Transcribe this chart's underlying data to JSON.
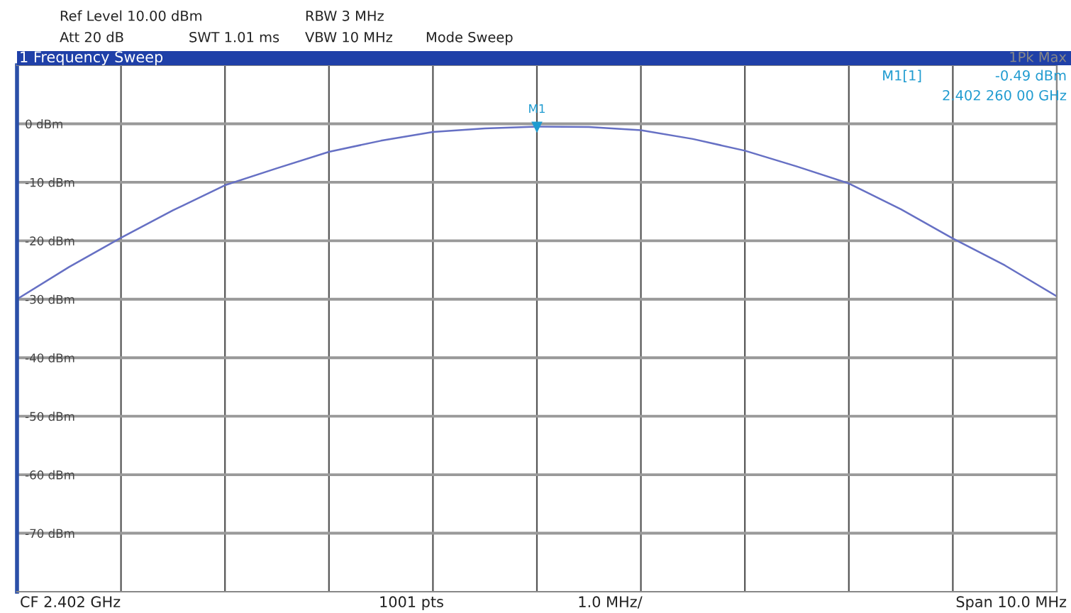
{
  "chart_data": {
    "type": "line",
    "title": "1 Frequency Sweep",
    "annotations": [
      "Ref Level 10.00 dBm",
      "Att 20 dB",
      "SWT 1.01 ms",
      "RBW 3 MHz",
      "VBW 10 MHz",
      "Mode Sweep",
      "1Pk Max",
      "M1[1]",
      "-0.49 dBm",
      "2.402 260 00 GHz",
      "CF 2.402 GHz",
      "1001 pts",
      "1.0 MHz/",
      "Span 10.0 MHz",
      "M1"
    ],
    "categories": [
      null,
      null,
      null,
      null,
      null,
      null,
      null,
      null,
      null,
      null,
      null,
      null,
      null,
      null,
      null,
      null,
      null,
      null,
      null,
      null,
      null
    ],
    "series": [
      {
        "color": "#6670c4",
        "values": [
          -30,
          -24.5,
          -19.5,
          -14.8,
          -10.5,
          -7.6,
          -4.8,
          -2.9,
          -1.4,
          -0.8,
          -0.5,
          -0.55,
          -1.1,
          -2.6,
          -4.6,
          -7.3,
          -10.2,
          -14.6,
          -19.6,
          -24.2,
          -29.5
        ]
      }
    ],
    "ylim": [
      -80,
      10
    ],
    "yticks": [
      {
        "value": 0,
        "label": "0 dBm"
      },
      {
        "value": -10,
        "label": "-10 dBm"
      },
      {
        "value": -20,
        "label": "-20 dBm"
      },
      {
        "value": -30,
        "label": "-30 dBm"
      },
      {
        "value": -40,
        "label": "-40 dBm"
      },
      {
        "value": -50,
        "label": "-50 dBm"
      },
      {
        "value": -60,
        "label": "-60 dBm"
      },
      {
        "value": -70,
        "label": "-70 dBm"
      }
    ],
    "tick_labels": "y",
    "grid": true
  }
}
